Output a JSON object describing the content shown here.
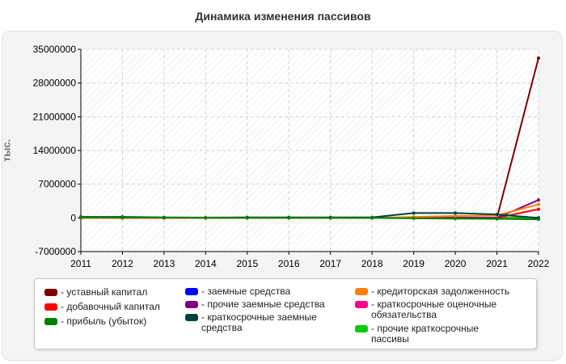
{
  "chart_data": {
    "type": "line",
    "title": "Динамика изменения пассивов",
    "ylabel": "тыс.",
    "xlabel": "",
    "x": [
      "2011",
      "2012",
      "2013",
      "2014",
      "2015",
      "2016",
      "2017",
      "2018",
      "2019",
      "2020",
      "2021",
      "2022"
    ],
    "ylim": [
      -7000000,
      35000000
    ],
    "yticks": [
      "-7000000",
      "0",
      "7000000",
      "14000000",
      "21000000",
      "28000000",
      "35000000"
    ],
    "ytick_values": [
      -7000000,
      0,
      7000000,
      14000000,
      21000000,
      28000000,
      35000000
    ],
    "grid": true,
    "legend_position": "bottom",
    "series": [
      {
        "name": "- уставный капитал",
        "color": "#800000",
        "values": [
          0,
          0,
          0,
          0,
          0,
          0,
          0,
          0,
          0,
          0,
          0,
          33200000
        ]
      },
      {
        "name": "- добавочный капитал",
        "color": "#ff0000",
        "values": [
          0,
          0,
          0,
          0,
          0,
          0,
          0,
          0,
          0,
          0,
          0,
          1800000
        ]
      },
      {
        "name": "- прибыль (убыток)",
        "color": "#008000",
        "values": [
          100000,
          80000,
          50000,
          30000,
          20000,
          20000,
          10000,
          0,
          -100000,
          -150000,
          -200000,
          -300000
        ]
      },
      {
        "name": "- заемные средства",
        "color": "#0000ff",
        "values": [
          0,
          0,
          0,
          0,
          0,
          0,
          0,
          0,
          0,
          0,
          0,
          0
        ]
      },
      {
        "name": "- прочие заемные средства",
        "color": "#800080",
        "values": [
          0,
          0,
          0,
          0,
          0,
          0,
          0,
          0,
          0,
          0,
          0,
          3700000
        ]
      },
      {
        "name": "- краткосрочные заемные средства",
        "color": "#004040",
        "values": [
          200000,
          200000,
          100000,
          50000,
          100000,
          100000,
          100000,
          100000,
          1000000,
          1000000,
          700000,
          0
        ]
      },
      {
        "name": "- кредиторская задолженность",
        "color": "#ff8000",
        "values": [
          0,
          0,
          0,
          0,
          0,
          0,
          0,
          0,
          200000,
          400000,
          500000,
          2800000
        ]
      },
      {
        "name": "- краткосрочные оценочные обязательства",
        "color": "#ff0080",
        "values": [
          0,
          0,
          0,
          0,
          0,
          0,
          0,
          0,
          0,
          0,
          0,
          0
        ]
      },
      {
        "name": "- прочие краткосрочные пассивы",
        "color": "#00cc00",
        "values": [
          0,
          0,
          0,
          0,
          0,
          0,
          0,
          0,
          0,
          0,
          0,
          0
        ]
      }
    ]
  }
}
